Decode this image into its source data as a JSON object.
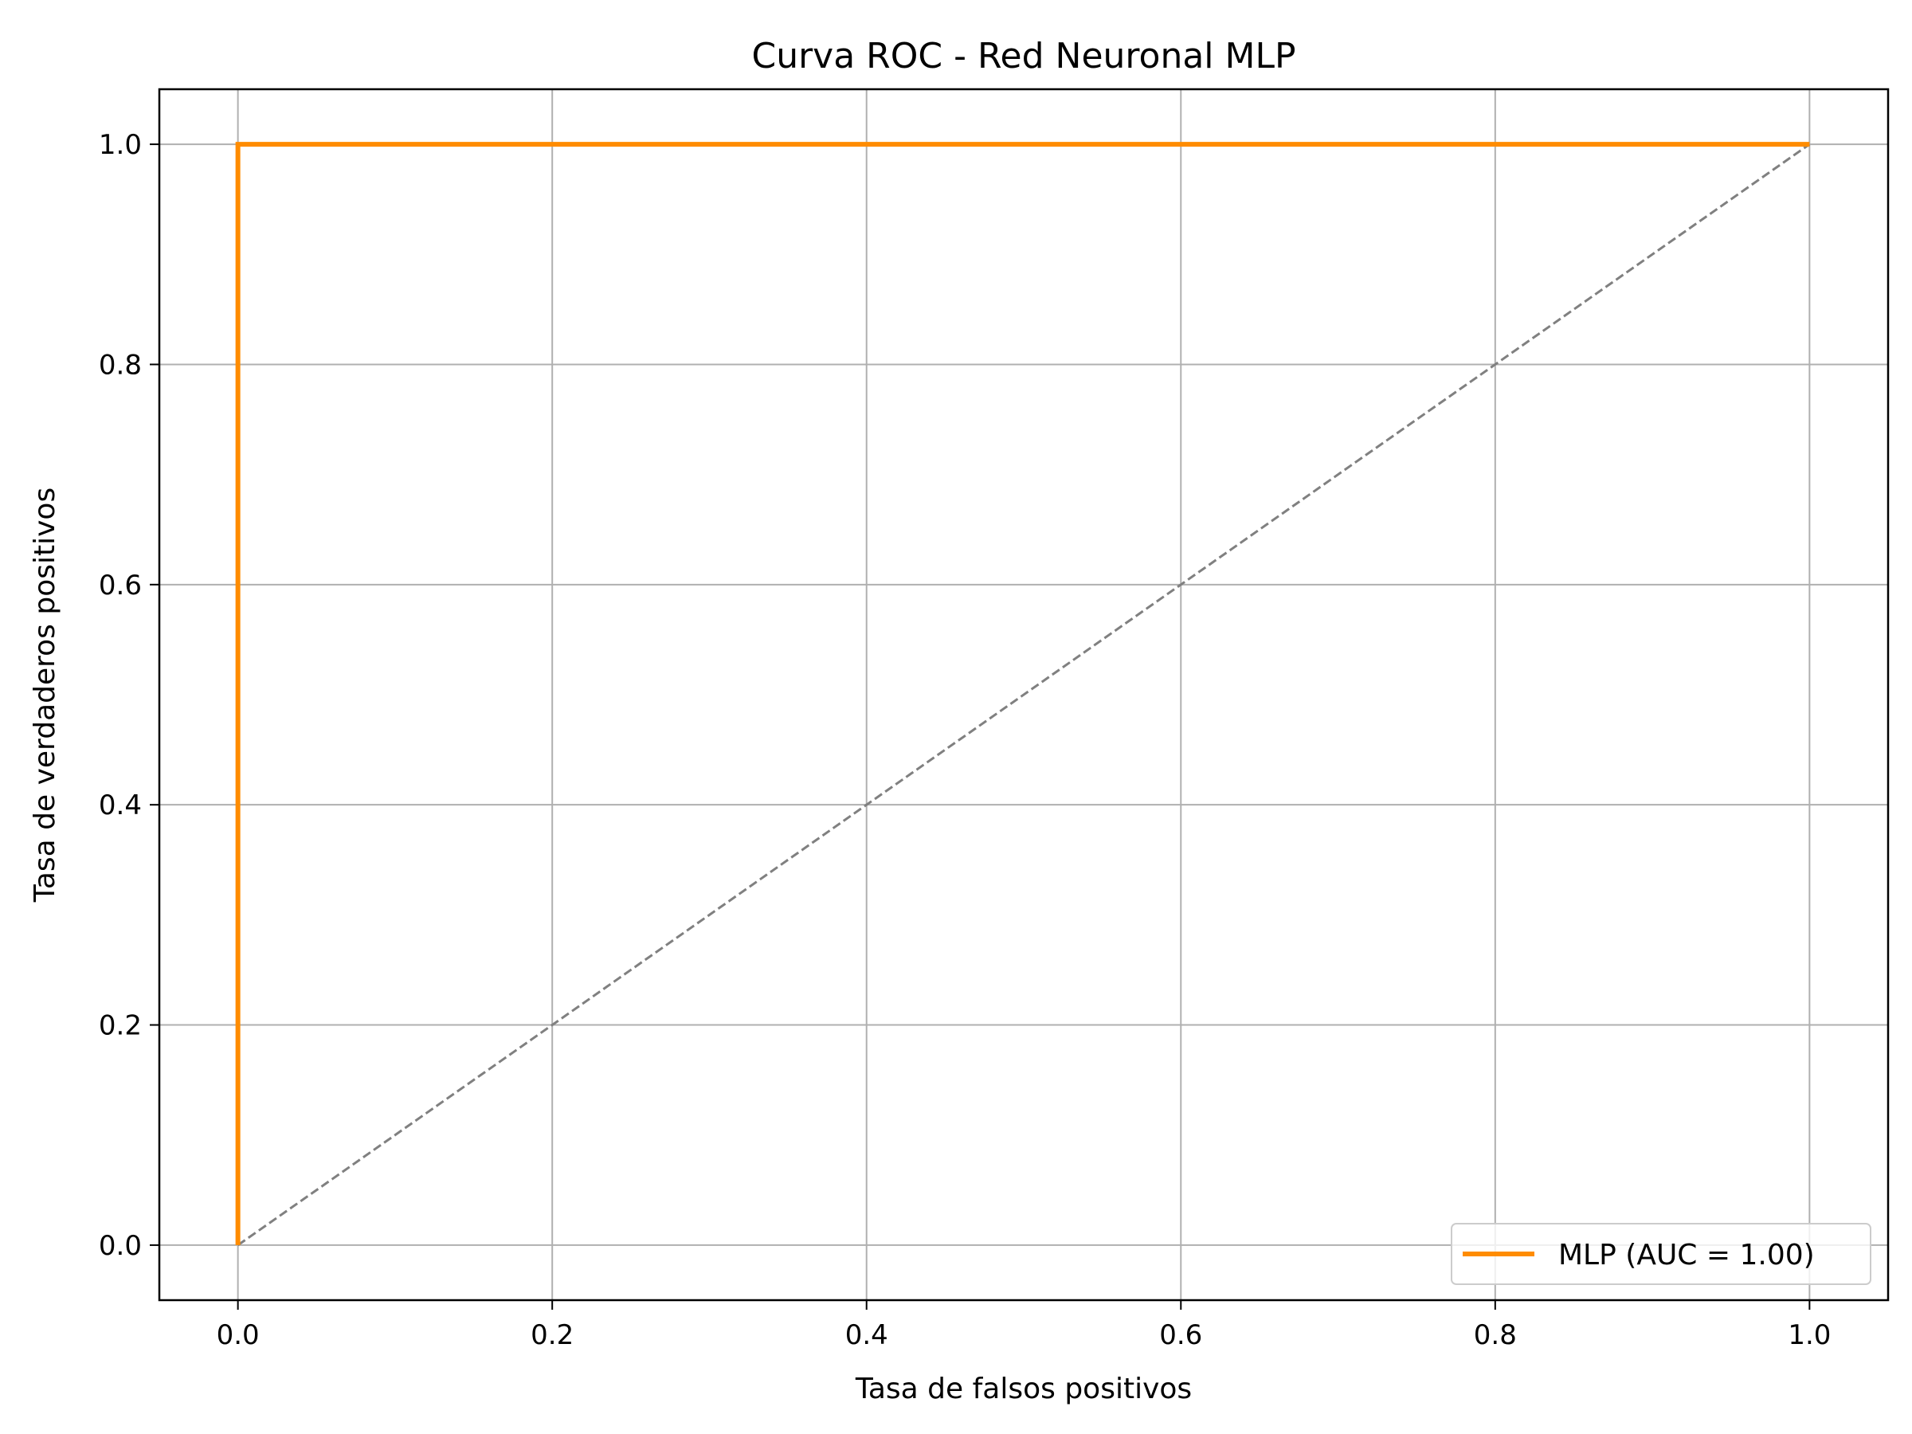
{
  "chart_data": {
    "type": "line",
    "title": "Curva ROC - Red Neuronal MLP",
    "xlabel": "Tasa de falsos positivos",
    "ylabel": "Tasa de verdaderos positivos",
    "xlim": [
      -0.05,
      1.05
    ],
    "ylim": [
      -0.05,
      1.05
    ],
    "xticks": [
      0.0,
      0.2,
      0.4,
      0.6,
      0.8,
      1.0
    ],
    "yticks": [
      0.0,
      0.2,
      0.4,
      0.6,
      0.8,
      1.0
    ],
    "xtick_labels": [
      "0.0",
      "0.2",
      "0.4",
      "0.6",
      "0.8",
      "1.0"
    ],
    "ytick_labels": [
      "0.0",
      "0.2",
      "0.4",
      "0.6",
      "0.8",
      "1.0"
    ],
    "grid": true,
    "legend_position": "lower-right",
    "series": [
      {
        "name": "MLP (AUC = 1.00)",
        "color": "#ff8c00",
        "style": "solid",
        "x": [
          0.0,
          0.0,
          1.0
        ],
        "y": [
          0.0,
          1.0,
          1.0
        ]
      }
    ],
    "reference_line": {
      "color": "#808080",
      "style": "dashed",
      "x": [
        0.0,
        1.0
      ],
      "y": [
        0.0,
        1.0
      ]
    }
  }
}
